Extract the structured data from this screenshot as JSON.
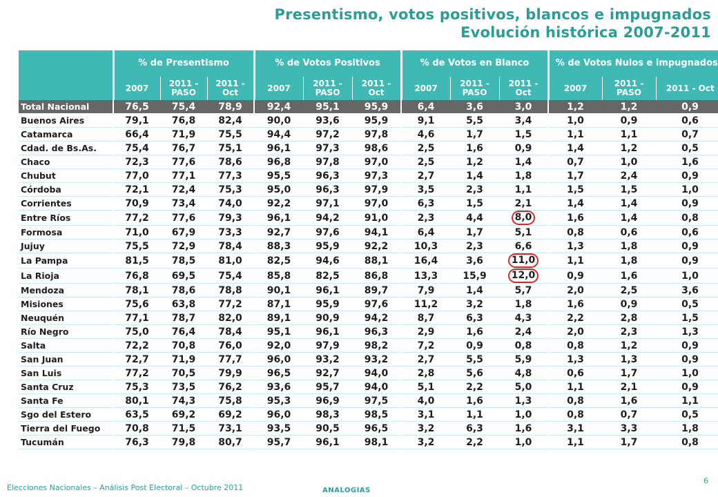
{
  "title_line1": "Presentismo, votos positivos, blancos e impugnados",
  "title_line2": "Evolución histórica 2007-2011",
  "groups": [
    "% de Presentismo",
    "% de Votos Positivos",
    "% de Votos en Blanco",
    "% de Votos Nulos e impugnados"
  ],
  "subcols": [
    "2007",
    "2011 - PASO",
    "2011 - Oct"
  ],
  "rows": [
    [
      "Total Nacional",
      "76,5",
      "75,4",
      "78,9",
      "92,4",
      "95,1",
      "95,9",
      "6,4",
      "3,6",
      "3,0",
      "1,2",
      "1,2",
      "0,9"
    ],
    [
      "Buenos Aires",
      "79,1",
      "76,8",
      "82,4",
      "90,0",
      "93,6",
      "95,9",
      "9,1",
      "5,5",
      "3,4",
      "1,0",
      "0,9",
      "0,6"
    ],
    [
      "Catamarca",
      "66,4",
      "71,9",
      "75,5",
      "94,4",
      "97,2",
      "97,8",
      "4,6",
      "1,7",
      "1,5",
      "1,1",
      "1,1",
      "0,7"
    ],
    [
      "Cdad. de Bs.As.",
      "75,4",
      "76,7",
      "75,1",
      "96,1",
      "97,3",
      "98,6",
      "2,5",
      "1,6",
      "0,9",
      "1,4",
      "1,2",
      "0,5"
    ],
    [
      "Chaco",
      "72,3",
      "77,6",
      "78,6",
      "96,8",
      "97,8",
      "97,0",
      "2,5",
      "1,2",
      "1,4",
      "0,7",
      "1,0",
      "1,6"
    ],
    [
      "Chubut",
      "77,0",
      "77,1",
      "77,3",
      "95,5",
      "96,3",
      "97,3",
      "2,7",
      "1,4",
      "1,8",
      "1,7",
      "2,4",
      "0,9"
    ],
    [
      "Córdoba",
      "72,1",
      "72,4",
      "75,3",
      "95,0",
      "96,3",
      "97,9",
      "3,5",
      "2,3",
      "1,1",
      "1,5",
      "1,5",
      "1,0"
    ],
    [
      "Corrientes",
      "70,9",
      "73,4",
      "74,0",
      "92,2",
      "97,1",
      "97,0",
      "6,3",
      "1,5",
      "2,1",
      "1,4",
      "1,4",
      "0,9"
    ],
    [
      "Entre Ríos",
      "77,2",
      "77,6",
      "79,3",
      "96,1",
      "94,2",
      "91,0",
      "2,3",
      "4,4",
      "8,0",
      "1,6",
      "1,4",
      "0,8"
    ],
    [
      "Formosa",
      "71,0",
      "67,9",
      "73,3",
      "92,7",
      "97,6",
      "94,1",
      "6,4",
      "1,7",
      "5,1",
      "0,8",
      "0,6",
      "0,6"
    ],
    [
      "Jujuy",
      "75,5",
      "72,9",
      "78,4",
      "88,3",
      "95,9",
      "92,2",
      "10,3",
      "2,3",
      "6,6",
      "1,3",
      "1,8",
      "0,9"
    ],
    [
      "La Pampa",
      "81,5",
      "78,5",
      "81,0",
      "82,5",
      "94,6",
      "88,1",
      "16,4",
      "3,6",
      "11,0",
      "1,1",
      "1,8",
      "0,9"
    ],
    [
      "La Rioja",
      "76,8",
      "69,5",
      "75,4",
      "85,8",
      "82,5",
      "86,8",
      "13,3",
      "15,9",
      "12,0",
      "0,9",
      "1,6",
      "1,0"
    ],
    [
      "Mendoza",
      "78,1",
      "78,6",
      "78,8",
      "90,1",
      "96,1",
      "89,7",
      "7,9",
      "1,4",
      "5,7",
      "2,0",
      "2,5",
      "3,6"
    ],
    [
      "Misiones",
      "75,6",
      "63,8",
      "77,2",
      "87,1",
      "95,9",
      "97,6",
      "11,2",
      "3,2",
      "1,8",
      "1,6",
      "0,9",
      "0,5"
    ],
    [
      "Neuquén",
      "77,1",
      "78,7",
      "82,0",
      "89,1",
      "90,9",
      "94,2",
      "8,7",
      "6,3",
      "4,3",
      "2,2",
      "2,8",
      "1,5"
    ],
    [
      "Río Negro",
      "75,0",
      "76,4",
      "78,4",
      "95,1",
      "96,1",
      "96,3",
      "2,9",
      "1,6",
      "2,4",
      "2,0",
      "2,3",
      "1,3"
    ],
    [
      "Salta",
      "72,2",
      "70,8",
      "76,0",
      "92,0",
      "97,9",
      "98,2",
      "7,2",
      "0,9",
      "0,8",
      "0,8",
      "1,2",
      "0,9"
    ],
    [
      "San Juan",
      "72,7",
      "71,9",
      "77,7",
      "96,0",
      "93,2",
      "93,2",
      "2,7",
      "5,5",
      "5,9",
      "1,3",
      "1,3",
      "0,9"
    ],
    [
      "San Luis",
      "77,2",
      "70,5",
      "79,9",
      "96,5",
      "92,7",
      "94,0",
      "2,8",
      "5,6",
      "4,8",
      "0,6",
      "1,7",
      "1,0"
    ],
    [
      "Santa Cruz",
      "75,3",
      "73,5",
      "76,2",
      "93,6",
      "95,7",
      "94,0",
      "5,1",
      "2,2",
      "5,0",
      "1,1",
      "2,1",
      "0,9"
    ],
    [
      "Santa Fe",
      "80,1",
      "74,3",
      "75,8",
      "95,3",
      "96,9",
      "97,5",
      "4,0",
      "1,6",
      "1,3",
      "0,8",
      "1,6",
      "1,1"
    ],
    [
      "Sgo del Estero",
      "63,5",
      "69,2",
      "69,2",
      "96,0",
      "98,3",
      "98,5",
      "3,1",
      "1,1",
      "1,0",
      "0,8",
      "0,7",
      "0,5"
    ],
    [
      "Tierra del Fuego",
      "70,8",
      "71,5",
      "73,1",
      "93,5",
      "90,5",
      "96,5",
      "3,2",
      "6,3",
      "1,6",
      "3,1",
      "3,3",
      "1,8"
    ],
    [
      "Tucumán",
      "76,3",
      "79,8",
      "80,7",
      "95,7",
      "96,1",
      "98,1",
      "3,2",
      "2,2",
      "1,0",
      "1,1",
      "1,7",
      "0,8"
    ]
  ],
  "highlighted": [
    "Entre Ríos|9",
    "La Pampa|9",
    "La Rioja|9"
  ],
  "colors": {
    "accent": "#40b8b3",
    "title": "#2a9d99",
    "total_row": "#666666",
    "highlight_circle": "#d8262b"
  },
  "footer": "Elecciones Nacionales – Análisis Post Electoral – Octubre 2011",
  "logo": "ANALOGIAS",
  "page_number": "6"
}
